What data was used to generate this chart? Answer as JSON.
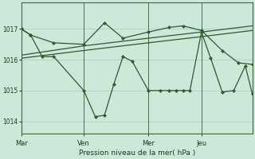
{
  "bg_color": "#cce8d8",
  "grid_color": "#aaccbb",
  "line_color": "#2d5a2d",
  "xlabel": "Pression niveau de la mer( hPa )",
  "ylim": [
    1013.6,
    1017.85
  ],
  "yticks": [
    1014,
    1015,
    1016,
    1017
  ],
  "day_labels": [
    "Mar",
    "Ven",
    "Mer",
    "Jeu"
  ],
  "day_positions": [
    0.0,
    0.27,
    0.55,
    0.78
  ],
  "line1_x": [
    0.0,
    0.04,
    0.09,
    0.14,
    0.27,
    0.32,
    0.36,
    0.4,
    0.44,
    0.48,
    0.55,
    0.6,
    0.64,
    0.67,
    0.7,
    0.73,
    0.78,
    0.82,
    0.87,
    0.92,
    0.97,
    1.0
  ],
  "line1_y": [
    1017.0,
    1016.8,
    1016.1,
    1016.1,
    1015.0,
    1014.15,
    1014.2,
    1015.2,
    1016.1,
    1015.95,
    1015.0,
    1015.0,
    1015.0,
    1015.0,
    1015.0,
    1015.0,
    1016.9,
    1016.05,
    1014.95,
    1015.0,
    1015.8,
    1014.9
  ],
  "line2_x": [
    0.0,
    0.04,
    0.14,
    0.27,
    0.36,
    0.44,
    0.55,
    0.64,
    0.7,
    0.78,
    0.87,
    0.94,
    1.0
  ],
  "line2_y": [
    1017.0,
    1016.8,
    1016.55,
    1016.5,
    1017.2,
    1016.7,
    1016.9,
    1017.05,
    1017.1,
    1016.95,
    1016.3,
    1015.9,
    1015.85
  ],
  "line3_x": [
    0.0,
    0.27,
    0.55,
    0.78,
    1.0
  ],
  "line3_y": [
    1016.15,
    1016.45,
    1016.7,
    1016.9,
    1017.1
  ],
  "line4_x": [
    0.0,
    0.27,
    0.55,
    0.78,
    1.0
  ],
  "line4_y": [
    1016.05,
    1016.3,
    1016.55,
    1016.75,
    1016.95
  ]
}
